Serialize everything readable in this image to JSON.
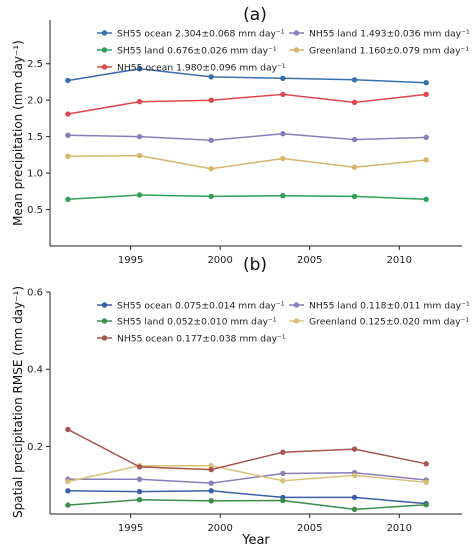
{
  "chart_data": [
    {
      "type": "line",
      "title": "(a)",
      "ylabel": "Mean precipitation (mm day⁻¹)",
      "xlabel": "",
      "xlim": [
        1990.5,
        2013.5
      ],
      "ylim": [
        0,
        3.1
      ],
      "xticks": [
        1995,
        2000,
        2005,
        2010
      ],
      "yticks": [
        0.5,
        1.0,
        1.5,
        2.0,
        2.5
      ],
      "ytick_labels": [
        "0.5",
        "1.0",
        "1.5",
        "2.0",
        "2.5"
      ],
      "xtick_labels": [
        "1995",
        "2000",
        "2005",
        "2010"
      ],
      "x": [
        1991.5,
        1995.5,
        1999.5,
        2003.5,
        2007.5,
        2011.5
      ],
      "legend_position": "top",
      "series": [
        {
          "name": "SH55 ocean 2.304±0.068 mm day⁻¹",
          "color": "#3a6fad",
          "values": [
            2.27,
            2.43,
            2.32,
            2.3,
            2.28,
            2.24
          ]
        },
        {
          "name": "NH55 land 1.493±0.036 mm day⁻¹",
          "color": "#8b7db8",
          "values": [
            1.52,
            1.5,
            1.45,
            1.54,
            1.46,
            1.49
          ]
        },
        {
          "name": "SH55 land 0.676±0.026 mm day⁻¹",
          "color": "#2ea05a",
          "values": [
            0.64,
            0.7,
            0.68,
            0.69,
            0.68,
            0.64
          ]
        },
        {
          "name": "Greenland 1.160±0.079 mm day⁻¹",
          "color": "#d8b36a",
          "values": [
            1.23,
            1.24,
            1.06,
            1.2,
            1.08,
            1.18
          ]
        },
        {
          "name": "NH55 ocean 1.980±0.096 mm day⁻¹",
          "color": "#e0474c",
          "values": [
            1.81,
            1.98,
            2.0,
            2.08,
            1.97,
            2.08
          ]
        }
      ]
    },
    {
      "type": "line",
      "title": "(b)",
      "ylabel": "Spatial precipitation RMSE (mm day⁻¹)",
      "xlabel": "Year",
      "xlim": [
        1990.5,
        2013.5
      ],
      "ylim": [
        0.025,
        0.6
      ],
      "xticks": [
        1995,
        2000,
        2005,
        2010
      ],
      "yticks": [
        0.2,
        0.4,
        0.6
      ],
      "ytick_labels": [
        "0.2",
        "0.4",
        "0.6"
      ],
      "xtick_labels": [
        "1995",
        "2000",
        "2005",
        "2010"
      ],
      "x": [
        1991.5,
        1995.5,
        1999.5,
        2003.5,
        2007.5,
        2011.5
      ],
      "legend_position": "top",
      "series": [
        {
          "name": "SH55 ocean 0.075±0.014 mm day⁻¹",
          "color": "#3a5fa8",
          "values": [
            0.085,
            0.083,
            0.085,
            0.068,
            0.068,
            0.052
          ]
        },
        {
          "name": "NH55 land 0.118±0.011 mm day⁻¹",
          "color": "#8b7db8",
          "values": [
            0.115,
            0.115,
            0.105,
            0.13,
            0.132,
            0.113
          ]
        },
        {
          "name": "SH55 land 0.052±0.010 mm day⁻¹",
          "color": "#3c8c4c",
          "values": [
            0.048,
            0.062,
            0.059,
            0.06,
            0.037,
            0.049
          ]
        },
        {
          "name": "Greenland 0.125±0.020 mm day⁻¹",
          "color": "#d8c27a",
          "values": [
            0.109,
            0.15,
            0.15,
            0.111,
            0.125,
            0.107
          ]
        },
        {
          "name": "NH55 ocean 0.177±0.038 mm day⁻¹",
          "color": "#a8544e",
          "values": [
            0.244,
            0.147,
            0.14,
            0.185,
            0.193,
            0.155
          ]
        }
      ]
    }
  ]
}
